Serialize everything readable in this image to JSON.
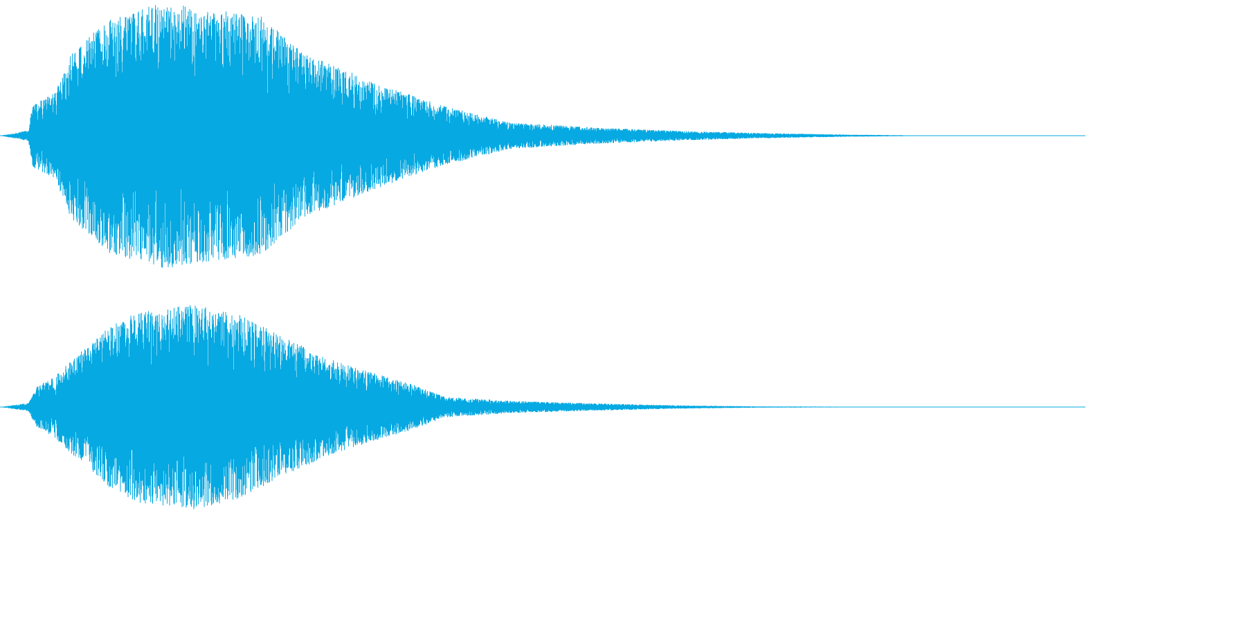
{
  "waveform": {
    "color": "#06a9e2",
    "background": "#ffffff",
    "channels": [
      {
        "name": "left",
        "seed": 11,
        "envelope": [
          [
            0.0,
            0.0
          ],
          [
            0.026,
            0.04
          ],
          [
            0.03,
            0.24
          ],
          [
            0.05,
            0.32
          ],
          [
            0.065,
            0.62
          ],
          [
            0.1,
            0.88
          ],
          [
            0.15,
            1.0
          ],
          [
            0.24,
            0.9
          ],
          [
            0.28,
            0.62
          ],
          [
            0.34,
            0.42
          ],
          [
            0.36,
            0.36
          ],
          [
            0.41,
            0.22
          ],
          [
            0.47,
            0.1
          ],
          [
            0.55,
            0.06
          ],
          [
            0.63,
            0.035
          ],
          [
            0.7,
            0.02
          ],
          [
            0.78,
            0.008
          ],
          [
            0.83,
            0.004
          ],
          [
            0.85,
            0.0
          ],
          [
            1.0,
            0.0
          ]
        ]
      },
      {
        "name": "right",
        "seed": 29,
        "envelope": [
          [
            0.0,
            0.0
          ],
          [
            0.026,
            0.04
          ],
          [
            0.034,
            0.2
          ],
          [
            0.05,
            0.3
          ],
          [
            0.07,
            0.5
          ],
          [
            0.1,
            0.78
          ],
          [
            0.13,
            0.95
          ],
          [
            0.18,
            1.0
          ],
          [
            0.22,
            0.9
          ],
          [
            0.27,
            0.64
          ],
          [
            0.3,
            0.48
          ],
          [
            0.33,
            0.38
          ],
          [
            0.38,
            0.22
          ],
          [
            0.41,
            0.1
          ],
          [
            0.47,
            0.06
          ],
          [
            0.55,
            0.035
          ],
          [
            0.63,
            0.015
          ],
          [
            0.7,
            0.006
          ],
          [
            0.8,
            0.003
          ],
          [
            0.82,
            0.0
          ],
          [
            1.0,
            0.0
          ]
        ]
      }
    ]
  }
}
